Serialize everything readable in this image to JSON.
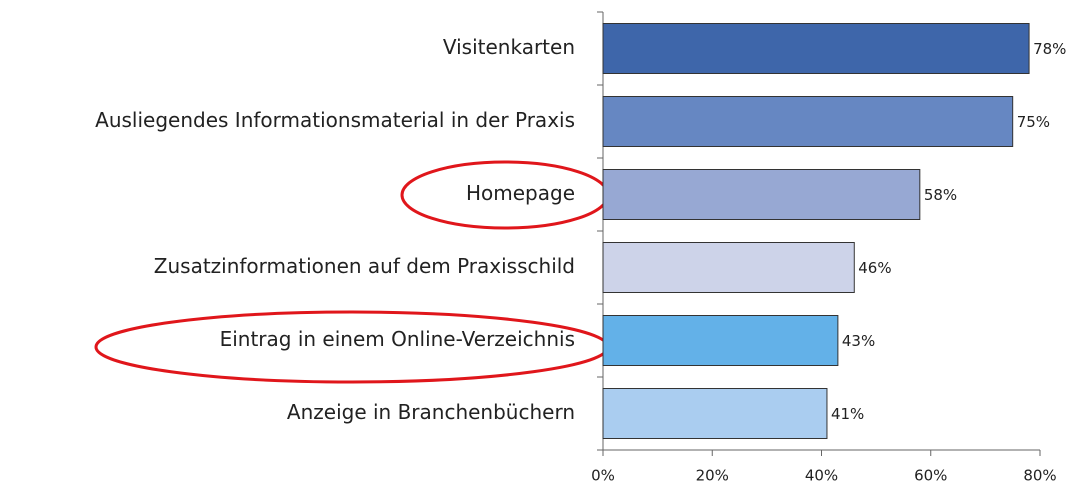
{
  "chart_data": {
    "type": "bar",
    "orientation": "horizontal",
    "categories": [
      "Visitenkarten",
      "Ausliegendes Informationsmaterial in der Praxis",
      "Homepage",
      "Zusatzinformationen auf dem Praxisschild",
      "Eintrag in einem Online-Verzeichnis",
      "Anzeige in Branchenbüchern"
    ],
    "values": [
      78,
      75,
      58,
      46,
      43,
      41
    ],
    "value_labels": [
      "78%",
      "75%",
      "58%",
      "46%",
      "43%",
      "41%"
    ],
    "colors": [
      "#3e66aa",
      "#6687c2",
      "#97a8d3",
      "#cdd3e9",
      "#63b1e8",
      "#aacdf0"
    ],
    "xlim": [
      0,
      80
    ],
    "xticks": [
      {
        "value": 0,
        "label": "0%"
      },
      {
        "value": 20,
        "label": "20%"
      },
      {
        "value": 40,
        "label": "40%"
      },
      {
        "value": 60,
        "label": "60%"
      },
      {
        "value": 80,
        "label": "80%"
      }
    ]
  }
}
